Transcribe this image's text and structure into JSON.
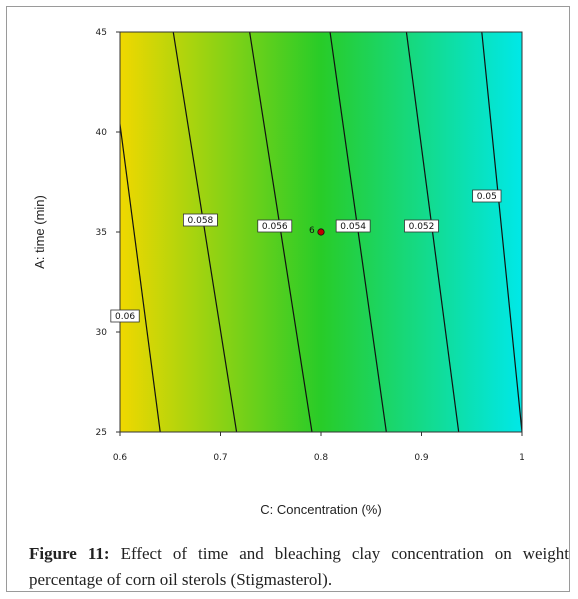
{
  "chart_data": {
    "type": "contour",
    "xlabel": "C: Concentration (%)",
    "ylabel": "A: time (min)",
    "xlim": [
      0.6,
      1.0
    ],
    "ylim": [
      25,
      45
    ],
    "xticks": [
      "0.6",
      "0.7",
      "0.8",
      "0.9",
      "1"
    ],
    "yticks": [
      "25",
      "30",
      "35",
      "40",
      "45"
    ],
    "color_low": "#00e8e8",
    "color_mid": "#28cc28",
    "color_high": "#f0d800",
    "contours": [
      {
        "label": "0.06",
        "bottom_x": 0.64,
        "top_x": 0.588,
        "label_x": 0.605,
        "label_y": 30.8
      },
      {
        "label": "0.058",
        "bottom_x": 0.716,
        "top_x": 0.653,
        "label_x": 0.68,
        "label_y": 35.6
      },
      {
        "label": "0.056",
        "bottom_x": 0.791,
        "top_x": 0.729,
        "label_x": 0.754,
        "label_y": 35.3
      },
      {
        "label": "0.054",
        "bottom_x": 0.865,
        "top_x": 0.809,
        "label_x": 0.832,
        "label_y": 35.3
      },
      {
        "label": "0.052",
        "bottom_x": 0.937,
        "top_x": 0.885,
        "label_x": 0.9,
        "label_y": 35.3
      },
      {
        "label": "0.05",
        "bottom_x": 1.0,
        "top_x": 0.96,
        "label_x": 0.965,
        "label_y": 36.8
      }
    ],
    "design_point": {
      "x": 0.8,
      "y": 35,
      "label": "6"
    }
  },
  "caption": {
    "label": "Figure 11:",
    "text": " Effect of time and bleaching clay concentration on weight percentage of corn oil sterols (Stigmasterol)."
  }
}
